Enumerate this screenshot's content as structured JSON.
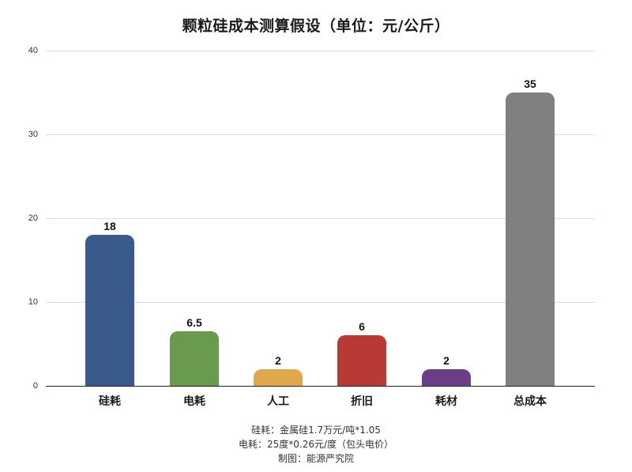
{
  "title": "颗粒硅成本测算假设（单位：元/公斤）",
  "chart_data": {
    "type": "bar",
    "title": "颗粒硅成本测算假设（单位：元/公斤）",
    "categories": [
      "硅耗",
      "电耗",
      "人工",
      "折旧",
      "耗材",
      "总成本"
    ],
    "values": [
      18,
      6.5,
      2,
      6,
      2,
      35
    ],
    "value_labels": [
      "18",
      "6.5",
      "2",
      "6",
      "2",
      "35"
    ],
    "colors": [
      "#3a5a8c",
      "#6a9a4e",
      "#e0a84a",
      "#b83a37",
      "#6b3e85",
      "#808080"
    ],
    "xlabel": "",
    "ylabel": "",
    "ylim": [
      0,
      40
    ],
    "yticks": [
      "0",
      "10",
      "20",
      "30",
      "40"
    ],
    "grid": true,
    "legend": null
  },
  "notes": [
    "硅耗：金属硅1.7万元/吨*1.05",
    "电耗：25度*0.26元/度（包头电价）",
    "制图：能源严究院"
  ]
}
